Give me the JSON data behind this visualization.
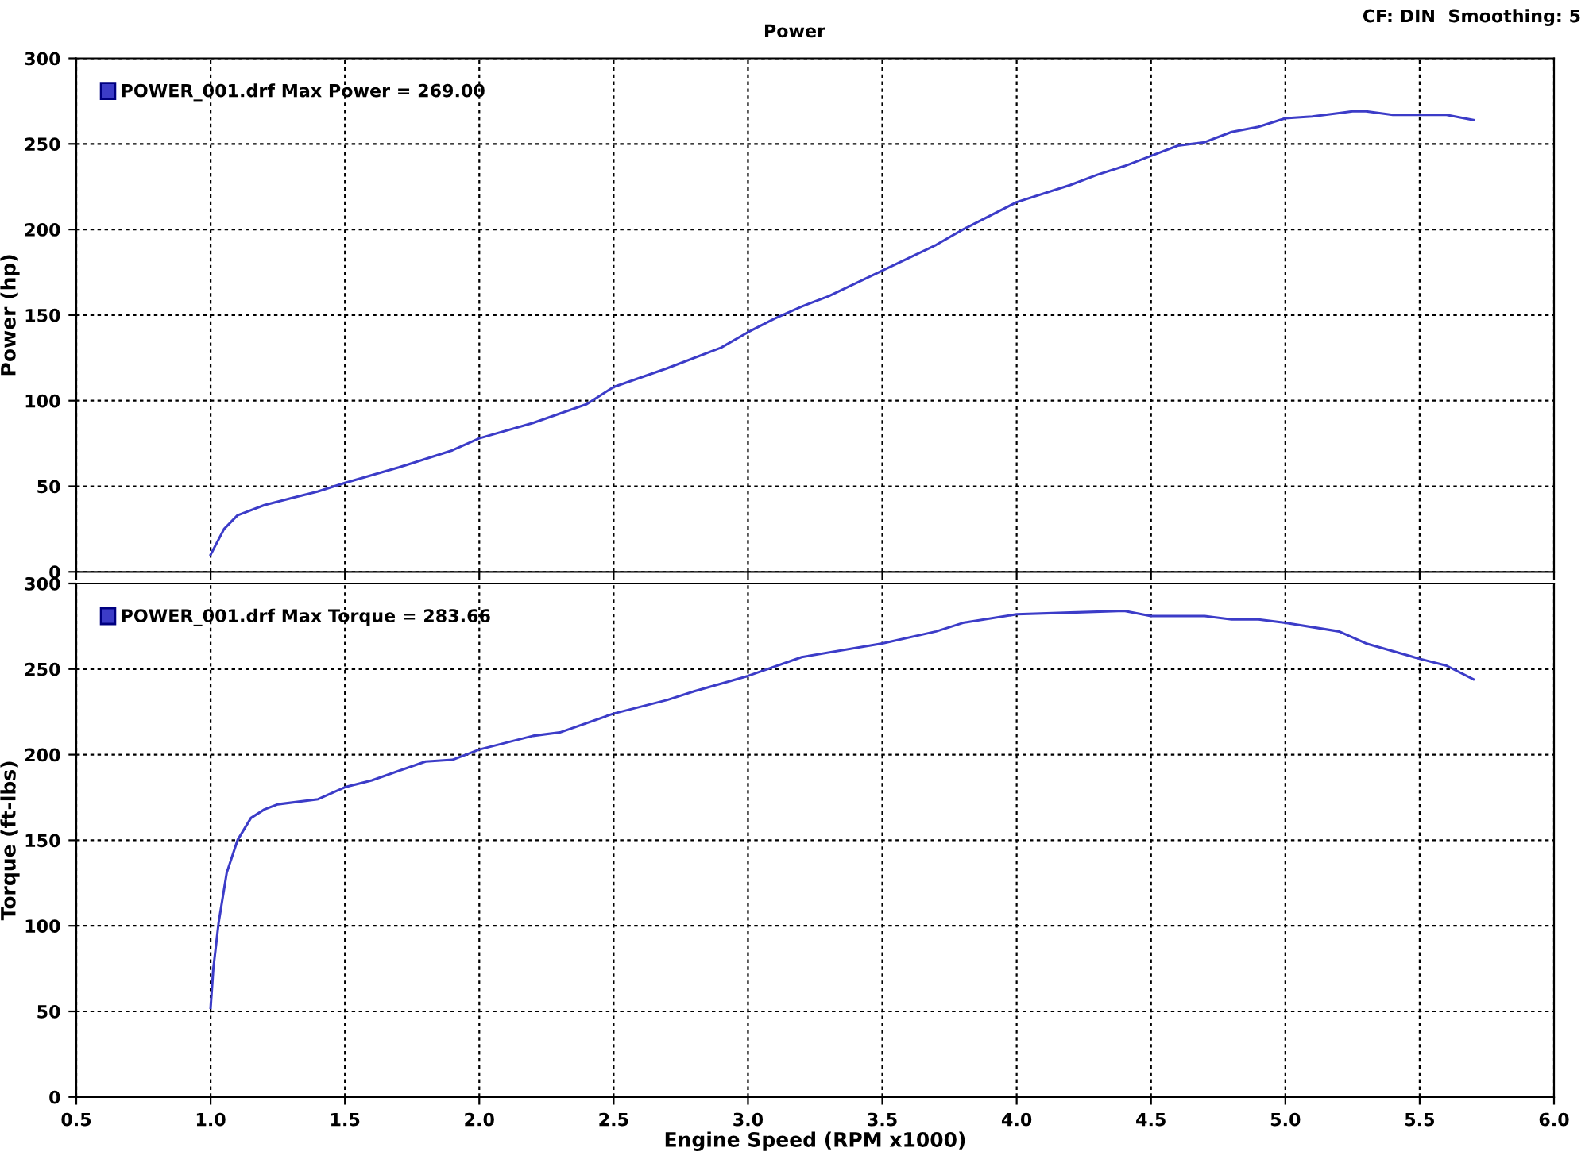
{
  "chart_data": [
    {
      "type": "line",
      "title": "Power",
      "annotations": [
        "CF: DIN  Smoothing: 5"
      ],
      "ylabel": "Power (hp)",
      "x": [
        1.0,
        1.05,
        1.1,
        1.2,
        1.3,
        1.4,
        1.5,
        1.7,
        1.9,
        2.0,
        2.2,
        2.4,
        2.5,
        2.7,
        2.9,
        3.0,
        3.1,
        3.2,
        3.3,
        3.5,
        3.7,
        3.8,
        3.9,
        4.0,
        4.2,
        4.3,
        4.4,
        4.5,
        4.6,
        4.7,
        4.8,
        4.9,
        5.0,
        5.1,
        5.2,
        5.25,
        5.3,
        5.4,
        5.5,
        5.6,
        5.7
      ],
      "series": [
        {
          "name": "POWER_001.drf Max Power = 269.00",
          "color": "#3c3cc8",
          "values": [
            10,
            25,
            33,
            39,
            43,
            47,
            52,
            61,
            71,
            78,
            87,
            98,
            108,
            119,
            131,
            140,
            148,
            155,
            161,
            176,
            191,
            200,
            208,
            216,
            226,
            232,
            237,
            243,
            249,
            251,
            257,
            260,
            265,
            266,
            268,
            269,
            269,
            267,
            267,
            267,
            264
          ]
        }
      ],
      "xlim": [
        0.5,
        6.0
      ],
      "xticks": [
        0.5,
        1,
        1.5,
        2,
        2.5,
        3,
        3.5,
        4,
        4.5,
        5,
        5.5,
        6
      ],
      "ylim": [
        0,
        300
      ],
      "yticks": [
        0,
        50,
        100,
        150,
        200,
        250,
        300
      ],
      "grid": true,
      "legend": "top left",
      "tick_labels": "y",
      "line_style": "solid",
      "marker": "none"
    },
    {
      "type": "line",
      "xlabel": "Engine Speed (RPM x1000)",
      "ylabel": "Torque (ft-lbs)",
      "x": [
        1.0,
        1.01,
        1.03,
        1.06,
        1.1,
        1.15,
        1.2,
        1.25,
        1.4,
        1.5,
        1.6,
        1.8,
        1.9,
        2.0,
        2.2,
        2.3,
        2.5,
        2.7,
        2.8,
        3.0,
        3.2,
        3.5,
        3.7,
        3.8,
        4.0,
        4.2,
        4.4,
        4.5,
        4.7,
        4.8,
        4.9,
        5.0,
        5.2,
        5.3,
        5.5,
        5.6,
        5.7
      ],
      "series": [
        {
          "name": "POWER_001.drf Max Torque = 283.66",
          "color": "#3c3cc8",
          "values": [
            52,
            75,
            102,
            131,
            150,
            163,
            168,
            171,
            174,
            181,
            185,
            196,
            197,
            203,
            211,
            213,
            224,
            232,
            237,
            246,
            257,
            265,
            272,
            277,
            282,
            283,
            284,
            281,
            281,
            279,
            279,
            277,
            272,
            265,
            256,
            252,
            244
          ]
        }
      ],
      "xlim": [
        0.5,
        6.0
      ],
      "xticks": [
        0.5,
        {
          "value": 1,
          "label": "1.0"
        },
        1.5,
        {
          "value": 2,
          "label": "2.0"
        },
        2.5,
        {
          "value": 3,
          "label": "3.0"
        },
        3.5,
        {
          "value": 4,
          "label": "4.0"
        },
        4.5,
        {
          "value": 5,
          "label": "5.0"
        },
        5.5,
        {
          "value": 6,
          "label": "6.0"
        }
      ],
      "ylim": [
        0,
        300
      ],
      "yticks": [
        0,
        50,
        100,
        150,
        200,
        250,
        300
      ],
      "grid": true,
      "legend": "top left",
      "line_style": "solid",
      "marker": "none"
    }
  ]
}
